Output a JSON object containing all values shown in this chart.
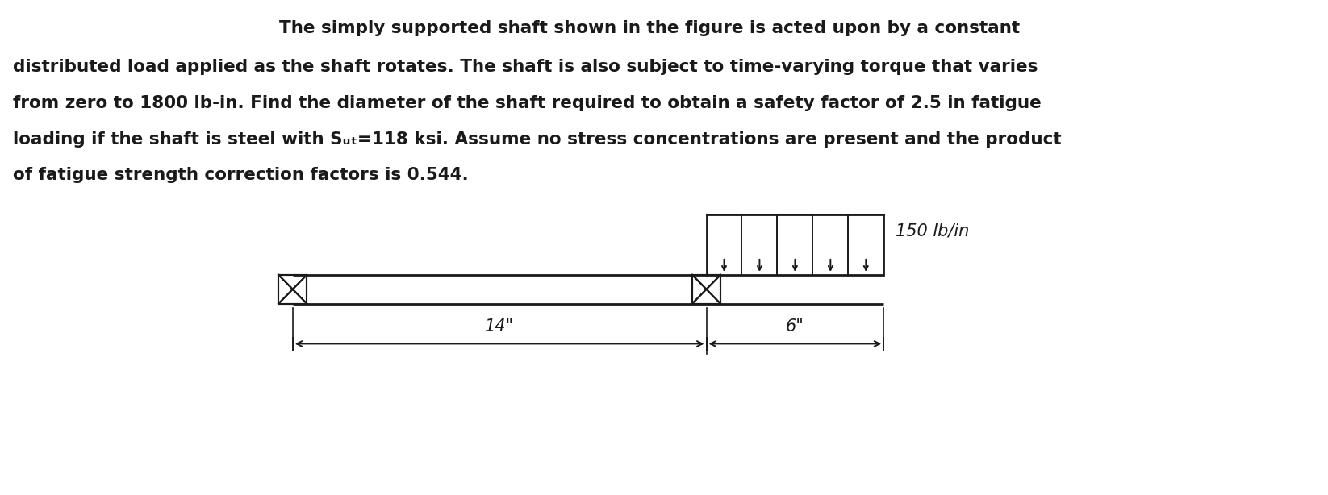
{
  "background_color": "#ffffff",
  "text_color": "#1a1a1a",
  "line1": "The simply supported shaft shown in the figure is acted upon by a constant",
  "line2": "distributed load applied as the shaft rotates. The shaft is also subject to time-varying torque that varies",
  "line3": "from zero to 1800 lb-in. Find the diameter of the shaft required to obtain a safety factor of 2.5 in fatigue",
  "line4": "loading if the shaft is steel with Sᵤₜ=118 ksi. Assume no stress concentrations are present and the product",
  "line5": "of fatigue strength correction factors is 0.544.",
  "load_label": "150 lb/in",
  "dim1_label": "14\"",
  "dim2_label": "6\"",
  "shaft_color": "#1a1a1a",
  "text_fontsize": 15.5,
  "label_fontsize": 15,
  "dim_fontsize": 15
}
